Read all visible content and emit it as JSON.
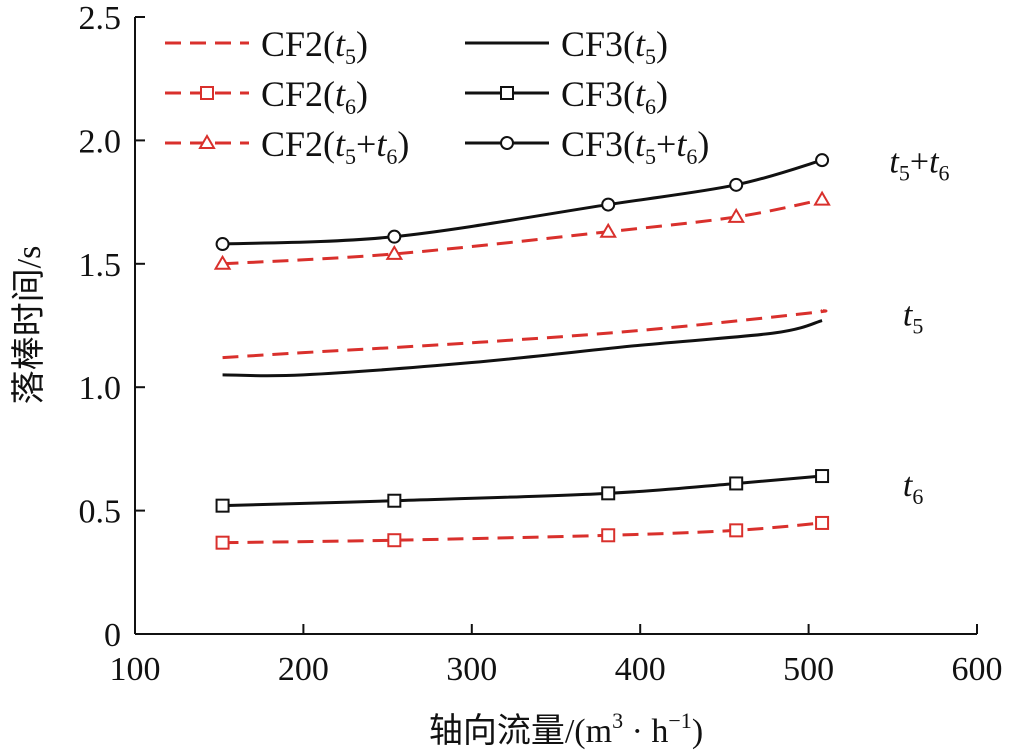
{
  "chart_data": {
    "type": "line",
    "xlabel": "轴向流量/(m³·h⁻¹)",
    "xlabel_parts": {
      "prefix": "轴向流量/(m",
      "sup1": "3",
      "mid": " · h",
      "sup2": "−1",
      "suffix": ")"
    },
    "ylabel": "落棒时间/s",
    "xlim": [
      100,
      600
    ],
    "ylim": [
      0,
      2.5
    ],
    "xticks": [
      100,
      200,
      300,
      400,
      500,
      600
    ],
    "yticks": [
      0,
      0.5,
      1.0,
      1.5,
      2.0,
      2.5
    ],
    "xtick_labels": [
      "100",
      "200",
      "300",
      "400",
      "500",
      "600"
    ],
    "ytick_labels": [
      "0",
      "0.5",
      "1.0",
      "1.5",
      "2.0",
      "2.5"
    ],
    "legend_position": "top-left",
    "colors": {
      "CF2": "#d9302c",
      "CF3": "#111111"
    },
    "series": [
      {
        "name": "CF2(t5)",
        "label_base": "CF2(",
        "sub_a": "t",
        "sub_a_idx": "5",
        "label_end": ")",
        "color": "#d9302c",
        "dashed": true,
        "marker": "none",
        "x": [
          152,
          200,
          300,
          400,
          500,
          508
        ],
        "y": [
          1.12,
          1.14,
          1.18,
          1.23,
          1.3,
          1.31
        ]
      },
      {
        "name": "CF2(t6)",
        "label_base": "CF2(",
        "sub_a": "t",
        "sub_a_idx": "6",
        "label_end": ")",
        "color": "#d9302c",
        "dashed": true,
        "marker": "square",
        "x": [
          152,
          254,
          381,
          457,
          508
        ],
        "y": [
          0.37,
          0.38,
          0.4,
          0.42,
          0.45
        ]
      },
      {
        "name": "CF2(t5+t6)",
        "label_base": "CF2(",
        "sub_a": "t",
        "sub_a_idx": "5",
        "plus": "+",
        "sub_b": "t",
        "sub_b_idx": "6",
        "label_end": ")",
        "color": "#d9302c",
        "dashed": true,
        "marker": "triangle",
        "x": [
          152,
          254,
          381,
          457,
          508
        ],
        "y": [
          1.5,
          1.54,
          1.63,
          1.69,
          1.76
        ]
      },
      {
        "name": "CF3(t5)",
        "label_base": "CF3(",
        "sub_a": "t",
        "sub_a_idx": "5",
        "label_end": ")",
        "color": "#111111",
        "dashed": false,
        "marker": "none",
        "x": [
          152,
          200,
          300,
          400,
          480,
          508
        ],
        "y": [
          1.05,
          1.05,
          1.1,
          1.17,
          1.22,
          1.27
        ]
      },
      {
        "name": "CF3(t6)",
        "label_base": "CF3(",
        "sub_a": "t",
        "sub_a_idx": "6",
        "label_end": ")",
        "color": "#111111",
        "dashed": false,
        "marker": "square",
        "x": [
          152,
          254,
          381,
          457,
          508
        ],
        "y": [
          0.52,
          0.54,
          0.57,
          0.61,
          0.64
        ]
      },
      {
        "name": "CF3(t5+t6)",
        "label_base": "CF3(",
        "sub_a": "t",
        "sub_a_idx": "5",
        "plus": "+",
        "sub_b": "t",
        "sub_b_idx": "6",
        "label_end": ")",
        "color": "#111111",
        "dashed": false,
        "marker": "circle",
        "x": [
          152,
          254,
          381,
          457,
          508
        ],
        "y": [
          1.58,
          1.61,
          1.74,
          1.82,
          1.92
        ]
      }
    ],
    "annotations": [
      {
        "text": "t5+t6",
        "a": "t",
        "a_idx": "5",
        "plus": "+",
        "b": "t",
        "b_idx": "6",
        "x": 548,
        "y": 1.87
      },
      {
        "text": "t5",
        "a": "t",
        "a_idx": "5",
        "x": 556,
        "y": 1.25
      },
      {
        "text": "t6",
        "a": "t",
        "a_idx": "6",
        "x": 556,
        "y": 0.56
      }
    ]
  }
}
